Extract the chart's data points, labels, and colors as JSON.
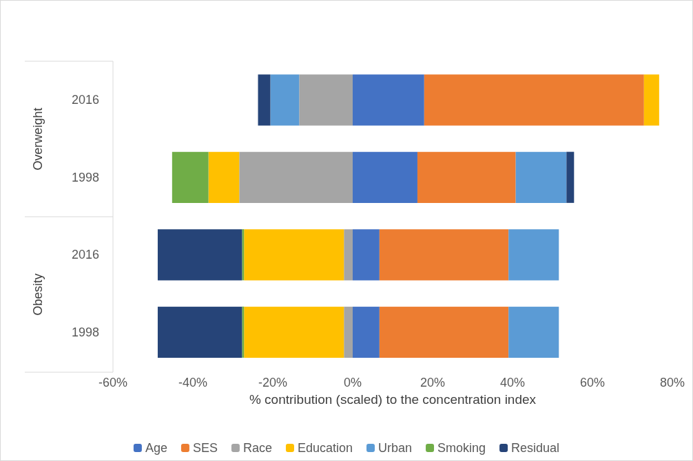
{
  "chart_data": {
    "type": "bar",
    "orientation": "horizontal",
    "stacked": true,
    "xlabel": "% contribution (scaled) to the concentration index",
    "categories": [
      "2016",
      "1998",
      "2016",
      "1998"
    ],
    "annotations": [
      "Overweight",
      "Obesity"
    ],
    "series": [
      {
        "name": "Age",
        "color": "#4472c4",
        "values": [
          17.9,
          16.2,
          6.7,
          6.7
        ]
      },
      {
        "name": "SES",
        "color": "#ed7d31",
        "values": [
          55.0,
          24.6,
          32.3,
          32.3
        ]
      },
      {
        "name": "Race",
        "color": "#a5a5a5",
        "values": [
          -13.4,
          -28.4,
          -2.2,
          -2.2
        ]
      },
      {
        "name": "Education",
        "color": "#ffc000",
        "values": [
          3.8,
          -7.7,
          -25.0,
          -25.0
        ]
      },
      {
        "name": "Urban",
        "color": "#5b9bd5",
        "values": [
          -7.2,
          12.7,
          12.6,
          12.6
        ]
      },
      {
        "name": "Smoking",
        "color": "#70ad47",
        "values": [
          null,
          -9.1,
          -0.5,
          -0.5
        ]
      },
      {
        "name": "Residual",
        "color": "#264478",
        "values": [
          -3.1,
          1.9,
          -21.1,
          -21.1
        ]
      }
    ],
    "xlim": [
      -60,
      80
    ],
    "xticks": [
      {
        "value": -60,
        "label": "-60%"
      },
      {
        "value": -40,
        "label": "-40%"
      },
      {
        "value": -20,
        "label": "-20%"
      },
      {
        "value": 0,
        "label": "0%"
      },
      {
        "value": 20,
        "label": "20%"
      },
      {
        "value": 40,
        "label": "40%"
      },
      {
        "value": 60,
        "label": "60%"
      },
      {
        "value": 80,
        "label": "80%"
      }
    ],
    "grid": false,
    "legend": "bottom"
  }
}
